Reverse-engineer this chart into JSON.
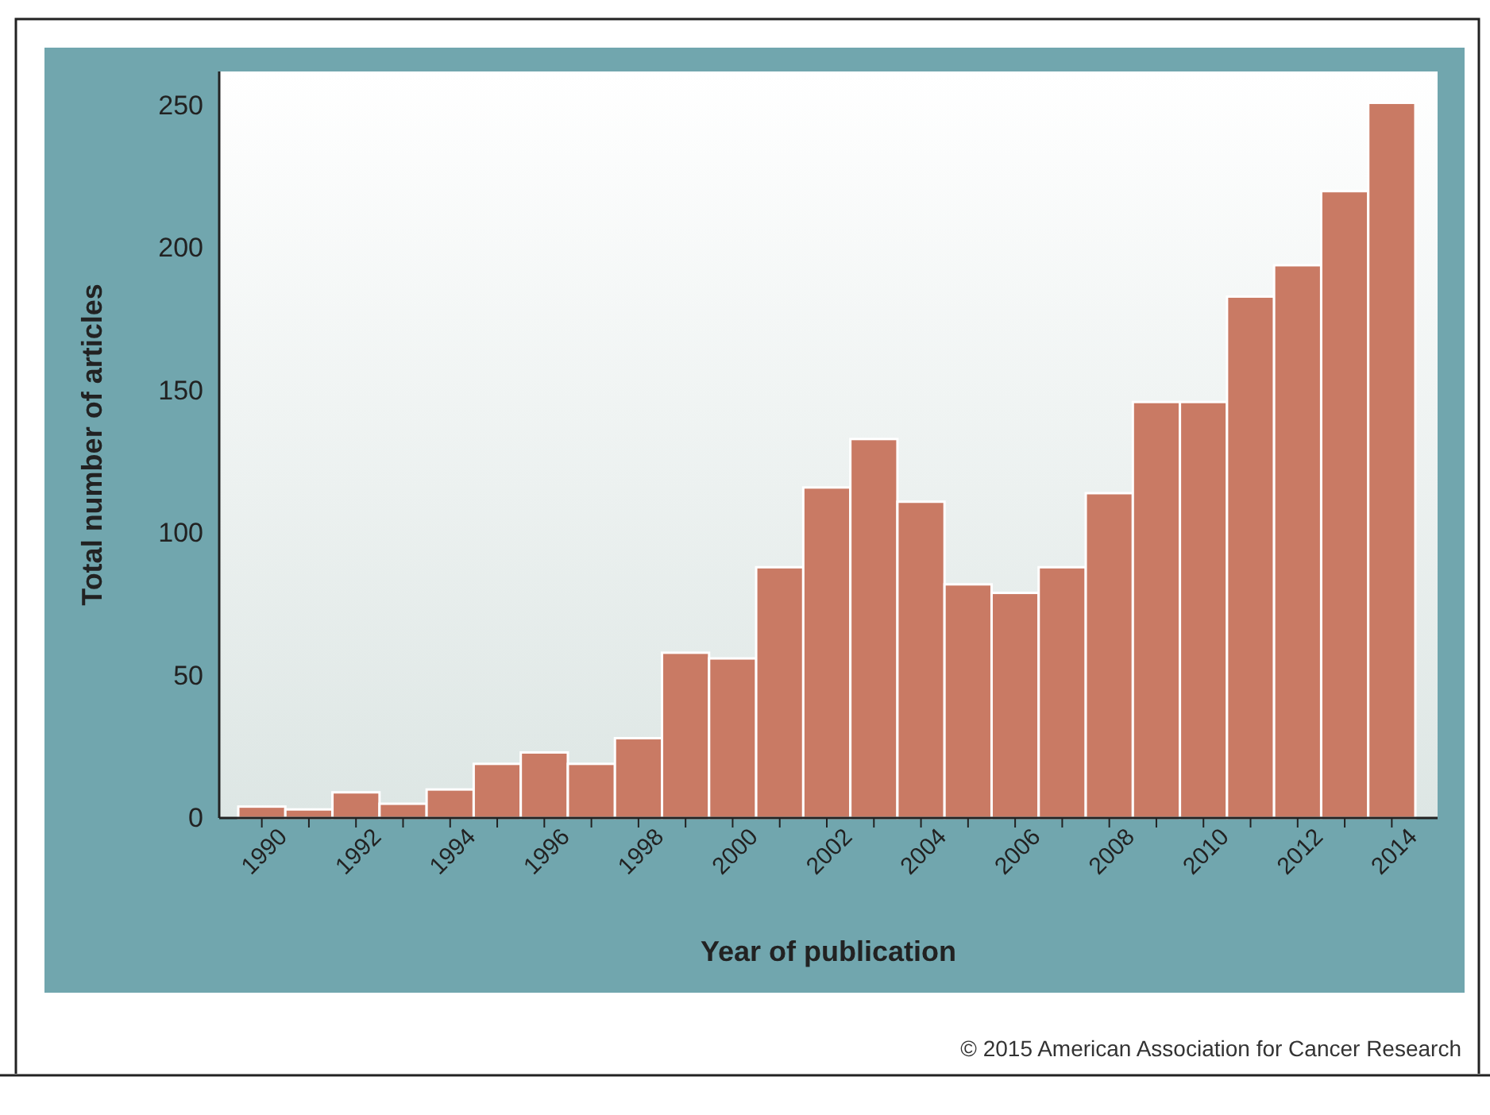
{
  "chart_data": {
    "type": "bar",
    "xlabel": "Year of publication",
    "ylabel": "Total number of articles",
    "categories": [
      "1990",
      null,
      "1992",
      null,
      "1994",
      null,
      "1996",
      null,
      "1998",
      null,
      "2000",
      null,
      "2002",
      null,
      "2004",
      null,
      "2006",
      null,
      "2008",
      null,
      "2010",
      null,
      "2012",
      null,
      "2014"
    ],
    "values": [
      4,
      3,
      9,
      5,
      10,
      19,
      23,
      19,
      28,
      58,
      56,
      88,
      116,
      133,
      111,
      82,
      79,
      88,
      114,
      146,
      146,
      183,
      194,
      220,
      251
    ],
    "color": "#c97a64",
    "ylim": [
      0,
      262
    ],
    "yticks": [
      0,
      50,
      100,
      150,
      200,
      250
    ],
    "grid": false,
    "annotations": [
      "© 2015 American Association for Cancer Research"
    ]
  }
}
